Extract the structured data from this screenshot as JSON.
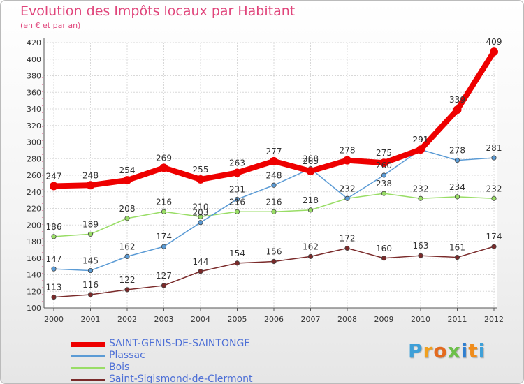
{
  "chart_data": {
    "type": "line",
    "title": "Evolution des Impôts locaux par Habitant",
    "subtitle": "(en € et par an)",
    "x": [
      "2000",
      "2001",
      "2002",
      "2003",
      "2004",
      "2005",
      "2006",
      "2007",
      "2008",
      "2009",
      "2010",
      "2011",
      "2012"
    ],
    "ylim": [
      100,
      420
    ],
    "yticks": [
      100,
      120,
      140,
      160,
      180,
      200,
      220,
      240,
      260,
      280,
      300,
      320,
      340,
      360,
      380,
      400,
      420
    ],
    "grid": true,
    "legend_position": "bottom-left",
    "series": [
      {
        "name": "SAINT-GENIS-DE-SAINTONGE",
        "color": "#ee0000",
        "values": [
          247,
          248,
          254,
          269,
          255,
          263,
          277,
          265,
          278,
          275,
          291,
          339,
          409
        ]
      },
      {
        "name": "Plassac",
        "color": "#5b9bd5",
        "values": [
          147,
          145,
          162,
          174,
          203,
          231,
          248,
          268,
          232,
          260,
          291,
          278,
          281
        ]
      },
      {
        "name": "Bois",
        "color": "#99dd66",
        "values": [
          186,
          189,
          208,
          216,
          210,
          216,
          216,
          218,
          232,
          238,
          232,
          234,
          232
        ]
      },
      {
        "name": "Saint-Sigismond-de-Clermont",
        "color": "#7a2a2a",
        "values": [
          113,
          116,
          122,
          127,
          144,
          154,
          156,
          162,
          172,
          160,
          163,
          161,
          174
        ]
      }
    ]
  },
  "logo": {
    "letters": [
      {
        "ch": "P",
        "color": "#3fa0d8"
      },
      {
        "ch": "r",
        "color": "#f0a020"
      },
      {
        "ch": "o",
        "color": "#e46a1e"
      },
      {
        "ch": "x",
        "color": "#6cc04a"
      },
      {
        "ch": "i",
        "color": "#2f7fd0"
      },
      {
        "ch": "t",
        "color": "#f08c1a"
      },
      {
        "ch": "i",
        "color": "#3fa0d8"
      }
    ]
  }
}
